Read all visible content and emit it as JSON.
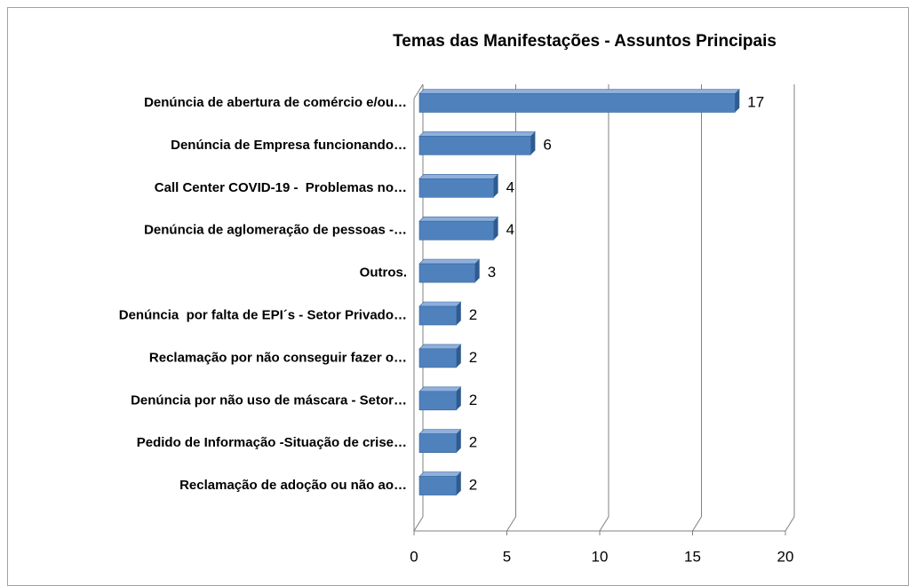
{
  "chart_data": {
    "type": "bar",
    "orientation": "horizontal",
    "title": "Temas das Manifestações - Assuntos Principais",
    "categories": [
      "Denúncia de abertura de comércio e/ou…",
      "Denúncia de Empresa funcionando…",
      "Call Center COVID-19 -  Problemas no…",
      "Denúncia de aglomeração de pessoas -…",
      "Outros.",
      "Denúncia  por falta de EPI´s - Setor Privado…",
      "Reclamação por não conseguir fazer o…",
      "Denúncia por não uso de máscara - Setor…",
      "Pedido de Informação -Situação de crise…",
      "Reclamação de adoção ou não ao…"
    ],
    "values": [
      17,
      6,
      4,
      4,
      3,
      2,
      2,
      2,
      2,
      2
    ],
    "color": "#4f81bd",
    "xlim": [
      0,
      20
    ],
    "xticks": [
      0,
      5,
      10,
      15,
      20
    ],
    "grid": true
  }
}
